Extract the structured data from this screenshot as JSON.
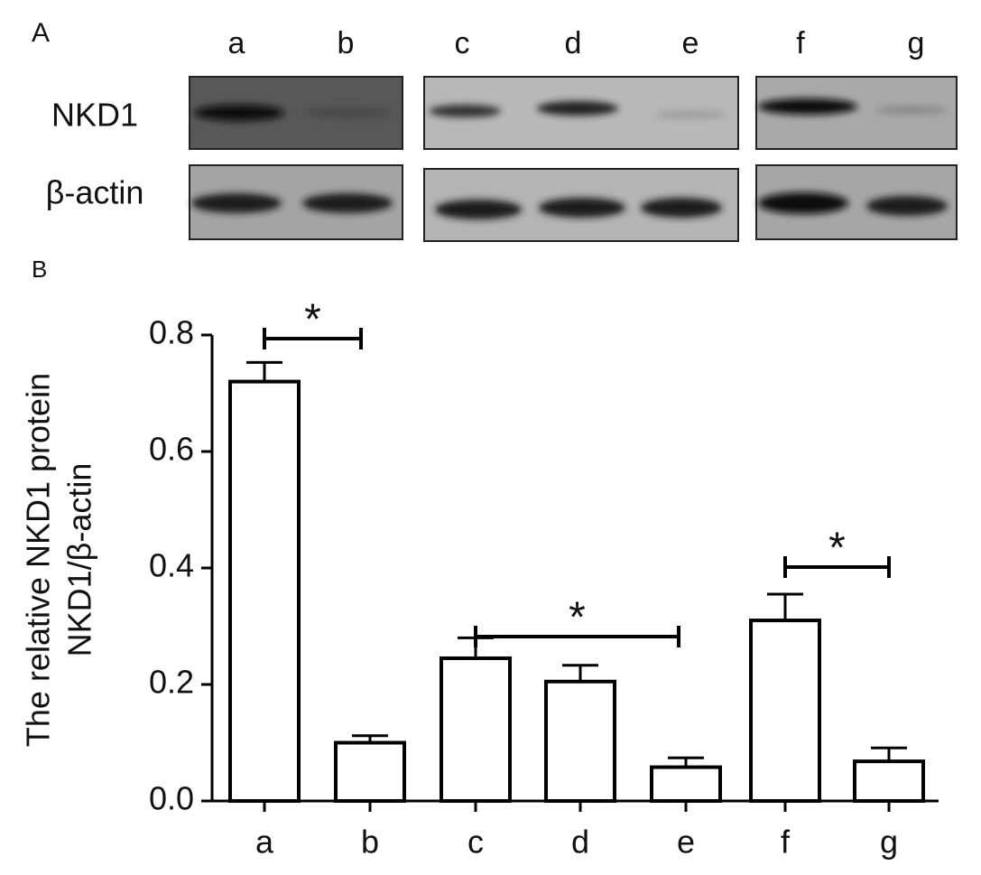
{
  "blot": {
    "panel_label": "A",
    "rows": [
      "NKD1",
      "β-actin"
    ]
  },
  "chart_data": {
    "type": "bar",
    "panel_label": "B",
    "y_label": [
      "The relative NKD1 protein",
      "NKD1/β-actin"
    ],
    "categories": [
      "a",
      "b",
      "c",
      "d",
      "e",
      "f",
      "g"
    ],
    "values": [
      0.72,
      0.1,
      0.245,
      0.205,
      0.058,
      0.31,
      0.068
    ],
    "errors": [
      0.033,
      0.012,
      0.035,
      0.028,
      0.016,
      0.045,
      0.023
    ],
    "color": "#ffffff",
    "ylim": [
      0,
      0.8
    ],
    "yticks": [
      {
        "value": 0,
        "label": "0.0"
      },
      0.2,
      0.4,
      0.6,
      0.8
    ],
    "annotations": [
      "*",
      "*",
      "*"
    ]
  }
}
